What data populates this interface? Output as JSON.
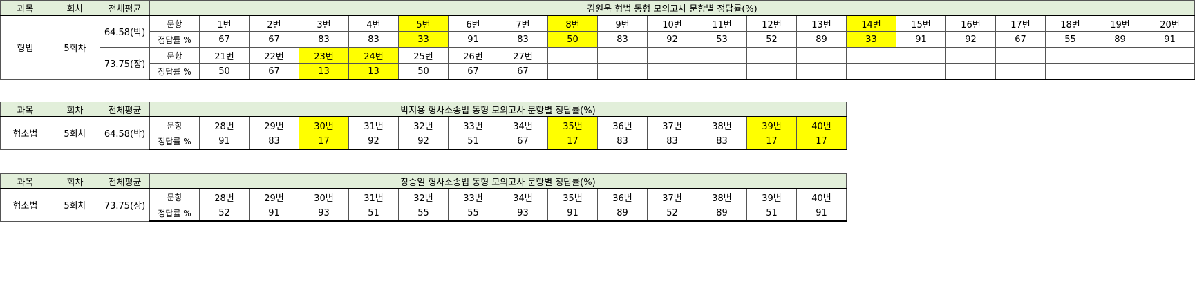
{
  "colors": {
    "header_bg": "#e2efda",
    "highlight": "#ffff00"
  },
  "headers": {
    "subject": "과목",
    "round": "회차",
    "average": "전체평균"
  },
  "row_labels": {
    "question": "문항",
    "rate": "정답률 %"
  },
  "tables": [
    {
      "title": "김원욱 형법 동형 모의고사 문항별 정답률(%)",
      "subject": "형법",
      "round": "5회차",
      "averages": [
        "64.58(박)",
        "73.75(장)"
      ],
      "blocks": [
        {
          "questions": [
            "1번",
            "2번",
            "3번",
            "4번",
            "5번",
            "6번",
            "7번",
            "8번",
            "9번",
            "10번",
            "11번",
            "12번",
            "13번",
            "14번",
            "15번",
            "16번",
            "17번",
            "18번",
            "19번",
            "20번"
          ],
          "rates": [
            "67",
            "67",
            "83",
            "83",
            "33",
            "91",
            "83",
            "50",
            "83",
            "92",
            "53",
            "52",
            "89",
            "33",
            "91",
            "92",
            "67",
            "55",
            "89",
            "91"
          ],
          "highlighted": [
            4,
            7,
            13
          ]
        },
        {
          "questions": [
            "21번",
            "22번",
            "23번",
            "24번",
            "25번",
            "26번",
            "27번"
          ],
          "rates": [
            "50",
            "67",
            "13",
            "13",
            "50",
            "67",
            "67"
          ],
          "highlighted": [
            2,
            3
          ]
        }
      ],
      "columns": 20
    },
    {
      "title": "박지용 형사소송법 동형 모의고사 문항별 정답률(%)",
      "subject": "형소법",
      "round": "5회차",
      "averages": [
        "64.58(박)"
      ],
      "blocks": [
        {
          "questions": [
            "28번",
            "29번",
            "30번",
            "31번",
            "32번",
            "33번",
            "34번",
            "35번",
            "36번",
            "37번",
            "38번",
            "39번",
            "40번"
          ],
          "rates": [
            "91",
            "83",
            "17",
            "92",
            "92",
            "51",
            "67",
            "17",
            "83",
            "83",
            "83",
            "17",
            "17"
          ],
          "highlighted": [
            2,
            7,
            11,
            12
          ]
        }
      ],
      "columns": 13
    },
    {
      "title": "장승일 형사소송법 동형 모의고사 문항별 정답률(%)",
      "subject": "형소법",
      "round": "5회차",
      "averages": [
        "73.75(장)"
      ],
      "blocks": [
        {
          "questions": [
            "28번",
            "29번",
            "30번",
            "31번",
            "32번",
            "33번",
            "34번",
            "35번",
            "36번",
            "37번",
            "38번",
            "39번",
            "40번"
          ],
          "rates": [
            "52",
            "91",
            "93",
            "51",
            "55",
            "55",
            "93",
            "91",
            "89",
            "52",
            "89",
            "51",
            "91"
          ],
          "highlighted": []
        }
      ],
      "columns": 13
    }
  ]
}
